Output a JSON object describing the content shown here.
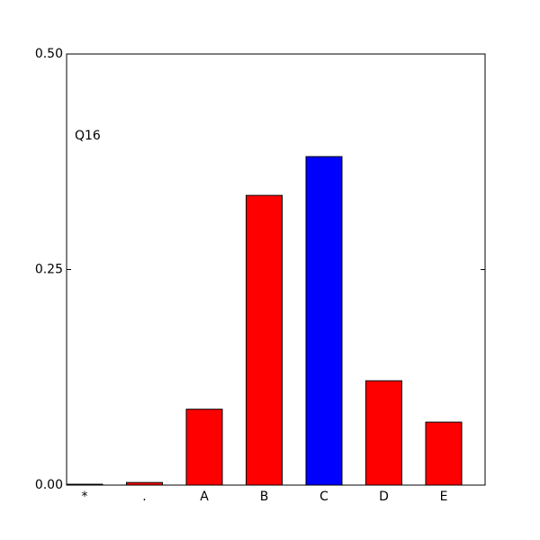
{
  "chart_data": {
    "type": "bar",
    "annotation": "Q16",
    "categories": [
      "*",
      ".",
      "A",
      "B",
      "C",
      "D",
      "E"
    ],
    "values": [
      0.001,
      0.003,
      0.088,
      0.336,
      0.381,
      0.121,
      0.073
    ],
    "colors": [
      "#ff0000",
      "#ff0000",
      "#ff0000",
      "#ff0000",
      "#0000ff",
      "#ff0000",
      "#ff0000"
    ],
    "ylim": [
      0,
      0.5
    ],
    "yticks": [
      {
        "value": 0,
        "label": "0.00"
      },
      {
        "value": 0.25,
        "label": "0.25"
      },
      {
        "value": 0.5,
        "label": "0.50"
      }
    ]
  }
}
